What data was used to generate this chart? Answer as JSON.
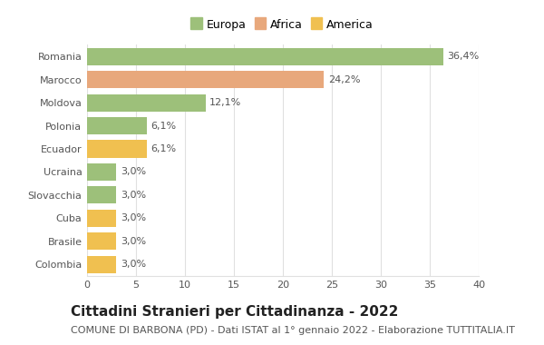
{
  "categories": [
    "Colombia",
    "Brasile",
    "Cuba",
    "Slovacchia",
    "Ucraina",
    "Ecuador",
    "Polonia",
    "Moldova",
    "Marocco",
    "Romania"
  ],
  "values": [
    3.0,
    3.0,
    3.0,
    3.0,
    3.0,
    6.1,
    6.1,
    12.1,
    24.2,
    36.4
  ],
  "labels": [
    "3,0%",
    "3,0%",
    "3,0%",
    "3,0%",
    "3,0%",
    "6,1%",
    "6,1%",
    "12,1%",
    "24,2%",
    "36,4%"
  ],
  "colors": [
    "#f0c050",
    "#f0c050",
    "#f0c050",
    "#9dc07a",
    "#9dc07a",
    "#f0c050",
    "#9dc07a",
    "#9dc07a",
    "#e8a87c",
    "#9dc07a"
  ],
  "legend": [
    {
      "label": "Europa",
      "color": "#9dc07a"
    },
    {
      "label": "Africa",
      "color": "#e8a87c"
    },
    {
      "label": "America",
      "color": "#f0c050"
    }
  ],
  "title": "Cittadini Stranieri per Cittadinanza - 2022",
  "subtitle": "COMUNE DI BARBONA (PD) - Dati ISTAT al 1° gennaio 2022 - Elaborazione TUTTITALIA.IT",
  "xlim": [
    0,
    40
  ],
  "xticks": [
    0,
    5,
    10,
    15,
    20,
    25,
    30,
    35,
    40
  ],
  "background_color": "#ffffff",
  "grid_color": "#e0e0e0",
  "bar_height": 0.75,
  "title_fontsize": 11,
  "subtitle_fontsize": 8,
  "label_fontsize": 8,
  "tick_fontsize": 8,
  "legend_fontsize": 9
}
